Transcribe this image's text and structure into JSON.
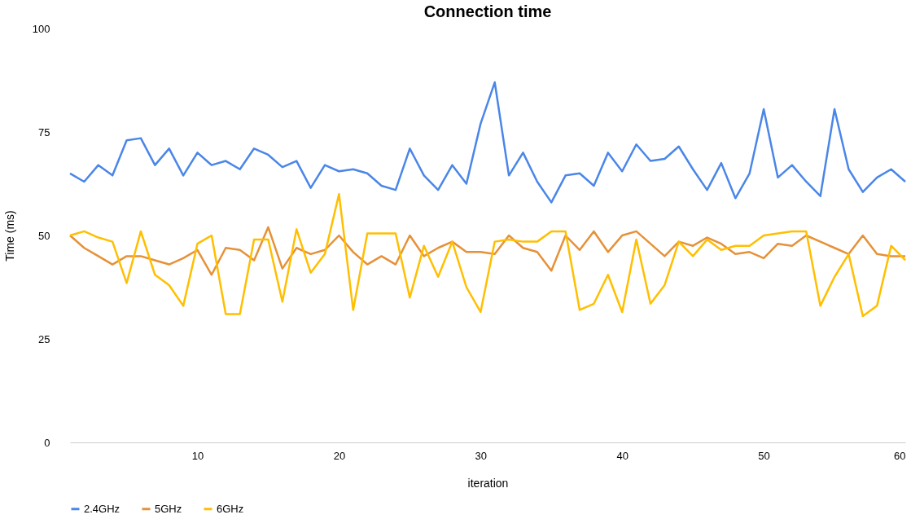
{
  "chart_data": {
    "type": "line",
    "title": "Connection time",
    "xlabel": "iteration",
    "ylabel": "Time (ms)",
    "x": [
      1,
      2,
      3,
      4,
      5,
      6,
      7,
      8,
      9,
      10,
      11,
      12,
      13,
      14,
      15,
      16,
      17,
      18,
      19,
      20,
      21,
      22,
      23,
      24,
      25,
      26,
      27,
      28,
      29,
      30,
      31,
      32,
      33,
      34,
      35,
      36,
      37,
      38,
      39,
      40,
      41,
      42,
      43,
      44,
      45,
      46,
      47,
      48,
      49,
      50,
      51,
      52,
      53,
      54,
      55,
      56,
      57,
      58,
      59,
      60
    ],
    "xlim": [
      1,
      60
    ],
    "xticks": [
      10,
      20,
      30,
      40,
      50,
      60
    ],
    "ylim": [
      0,
      100
    ],
    "yticks": [
      0,
      25,
      50,
      75,
      100
    ],
    "grid": false,
    "legend": "bottom",
    "marker": "none",
    "line_style": "solid",
    "series": [
      {
        "name": "2.4GHz",
        "color": "#4a86e8",
        "values": [
          65,
          63,
          67,
          64.5,
          73,
          73.5,
          67,
          71,
          64.5,
          70,
          67,
          68,
          66,
          71,
          69.5,
          66.5,
          68,
          61.5,
          67,
          65.5,
          66,
          65,
          62,
          61,
          71,
          64.5,
          61,
          67,
          62.5,
          77,
          87,
          64.5,
          70,
          63,
          58,
          64.5,
          65,
          62,
          70,
          65.5,
          72,
          68,
          68.5,
          71.5,
          66,
          61,
          67.5,
          59,
          65,
          80.5,
          64,
          67,
          63,
          59.5,
          80.5,
          66,
          60.5,
          64,
          66,
          63
        ]
      },
      {
        "name": "5GHz",
        "color": "#e69138",
        "values": [
          50,
          47,
          45,
          43,
          45,
          45,
          44,
          43,
          44.5,
          46.5,
          40.5,
          47,
          46.5,
          44,
          52,
          42,
          47,
          45.5,
          46.5,
          50,
          46,
          43,
          45,
          43,
          50,
          45,
          47,
          48.5,
          46,
          46,
          45.5,
          50,
          47,
          46,
          41.5,
          50,
          46.5,
          51,
          46,
          50,
          51,
          48,
          45,
          48.5,
          47.5,
          49.5,
          48,
          45.5,
          46,
          44.5,
          48,
          47.5,
          50,
          48.5,
          47,
          45.5,
          50,
          45.5,
          45,
          45
        ]
      },
      {
        "name": "6GHz",
        "color": "#ffbf00",
        "values": [
          50,
          51,
          49.5,
          48.5,
          38.5,
          51,
          40.5,
          38,
          33,
          48,
          50,
          31,
          31,
          49,
          49,
          34,
          51.5,
          41,
          45.5,
          60,
          32,
          50.5,
          50.5,
          50.5,
          35,
          47.5,
          40,
          48.5,
          37.5,
          31.5,
          48.5,
          49,
          48.5,
          48.5,
          51,
          51,
          32,
          33.5,
          40.5,
          31.5,
          49,
          33.5,
          38,
          48.5,
          45,
          49,
          46.5,
          47.5,
          47.5,
          50,
          50.5,
          51,
          51,
          33,
          40,
          45.5,
          30.5,
          33,
          47.5,
          44
        ]
      }
    ]
  }
}
